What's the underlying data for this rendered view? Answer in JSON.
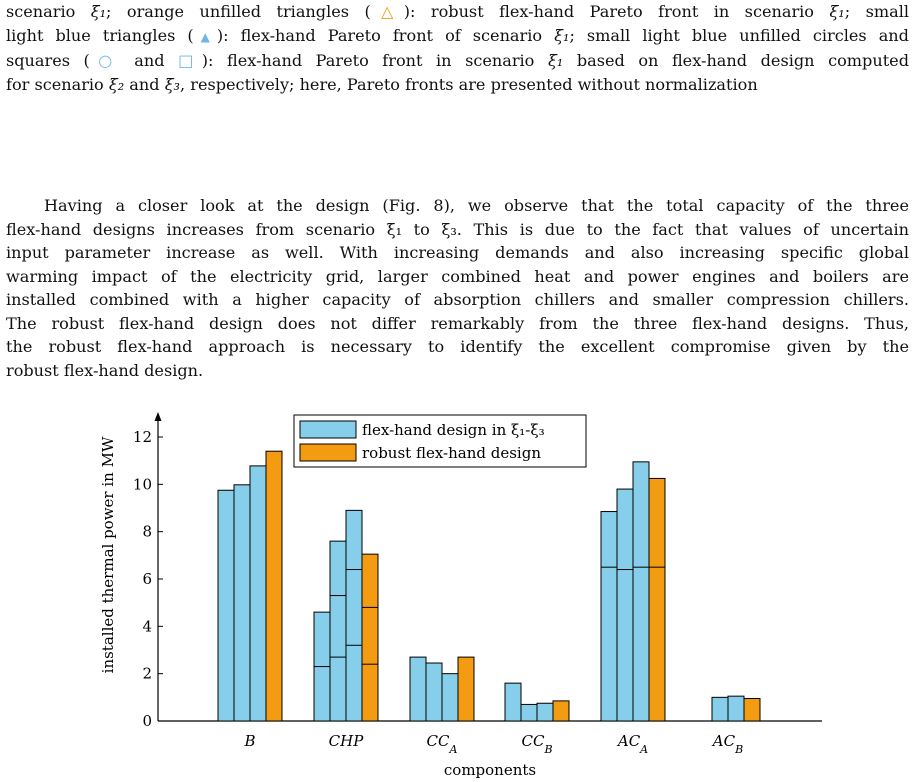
{
  "caption_tail": {
    "lines": [
      [
        "scenario ",
        "ξ₁",
        "; orange unfilled triangles (",
        "△",
        "): robust flex-hand Pareto front in scenario ",
        "ξ₁",
        "; small"
      ],
      [
        "light blue triangles (",
        "▲",
        "): flex-hand Pareto front of scenario ",
        "ξ₁",
        "; small light blue unfilled circles and"
      ],
      [
        "squares (",
        "○",
        " and ",
        "□",
        "): flex-hand Pareto front in scenario ",
        "ξ₁",
        " based on flex-hand design computed"
      ],
      [
        "for scenario ",
        "ξ₂",
        " and ",
        "ξ₃",
        ", respectively; here, Pareto fronts are presented without normalization"
      ]
    ]
  },
  "body_paragraph": {
    "lines": [
      "Having a closer look at the design (Fig. 8), we observe that the total capacity of the three",
      "flex-hand designs increases from scenario ξ₁ to ξ₃. This is due to the fact that values of uncertain",
      "input parameter increase as well. With increasing demands and also increasing specific global",
      "warming impact of the electricity grid, larger combined heat and power engines and boilers are",
      "installed combined with a higher capacity of absorption chillers and smaller compression chillers.",
      "The robust flex-hand design does not differ remarkably from the three flex-hand designs. Thus,",
      "the robust flex-hand approach is necessary to identify the excellent compromise given by the",
      "robust flex-hand design."
    ]
  },
  "chart_data": {
    "type": "bar",
    "xlabel": "components",
    "ylabel": "installed thermal power in MW",
    "ylim": [
      0,
      12
    ],
    "yticks": [
      "0",
      "2",
      "4",
      "6",
      "8",
      "10",
      "12"
    ],
    "categories": [
      "B",
      "CHP",
      "CC_A",
      "CC_B",
      "AC_A",
      "AC_B"
    ],
    "category_labels": [
      {
        "base": "B",
        "sub": ""
      },
      {
        "base": "CHP",
        "sub": ""
      },
      {
        "base": "CC",
        "sub": "A"
      },
      {
        "base": "CC",
        "sub": "B"
      },
      {
        "base": "AC",
        "sub": "A"
      },
      {
        "base": "AC",
        "sub": "B"
      }
    ],
    "legend": [
      {
        "label": "flex-hand design in ξ₁-ξ₃",
        "color": "#87ceeb"
      },
      {
        "label": "robust flex-hand design",
        "color": "#f39c12"
      }
    ],
    "legend_position": "top-center",
    "colors": {
      "flex": "#87ceeb",
      "robust": "#f39c12"
    },
    "series": [
      {
        "values": [
          9.75,
          4.6,
          2.7,
          1.6,
          8.85,
          0.0
        ],
        "segments": [
          [],
          [
            2.3
          ],
          [],
          [],
          [
            6.5
          ],
          []
        ]
      },
      {
        "values": [
          9.98,
          7.6,
          2.45,
          0.7,
          9.8,
          1.0
        ],
        "segments": [
          [],
          [
            2.7,
            5.3
          ],
          [],
          [],
          [
            6.4
          ],
          []
        ]
      },
      {
        "values": [
          10.78,
          8.9,
          2.0,
          0.75,
          10.95,
          1.05
        ],
        "segments": [
          [],
          [
            3.2,
            6.4
          ],
          [],
          [],
          [
            6.5
          ],
          []
        ]
      },
      {
        "values": [
          11.4,
          7.05,
          2.7,
          0.85,
          10.25,
          0.95
        ],
        "segments": [
          [],
          [
            2.4,
            4.8
          ],
          [],
          [],
          [
            6.5
          ],
          []
        ]
      }
    ]
  }
}
